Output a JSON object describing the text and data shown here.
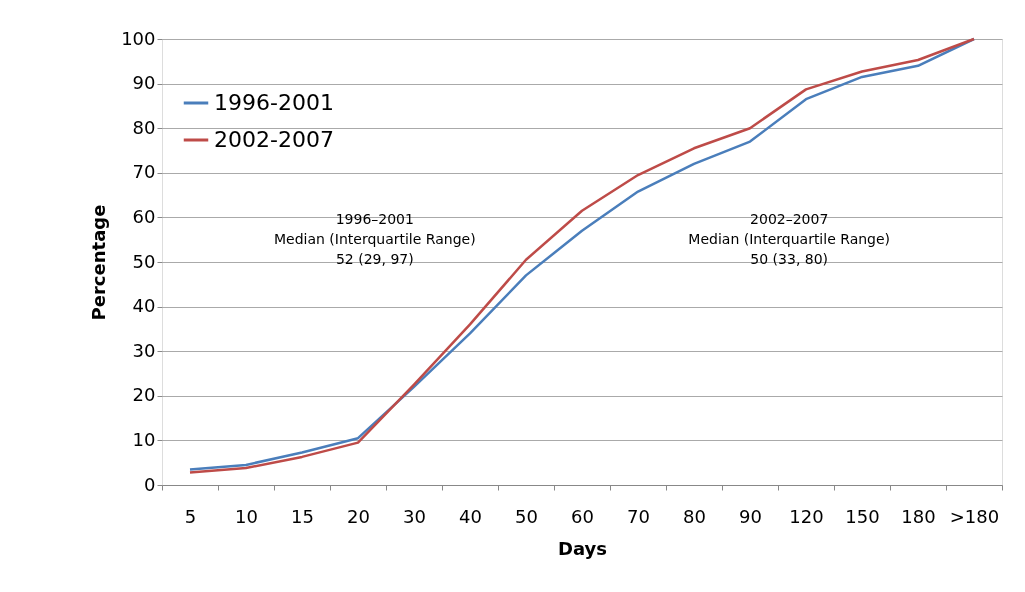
{
  "chart_data": {
    "type": "line",
    "xlabel": "Days",
    "ylabel": "Percentage",
    "categories": [
      "5",
      "10",
      "15",
      "20",
      "30",
      "40",
      "50",
      "60",
      "70",
      "80",
      "90",
      "120",
      "150",
      "180",
      ">180"
    ],
    "series": [
      {
        "name": "1996-2001",
        "color": "#4a7ebb",
        "values": [
          3.5,
          4.5,
          7.3,
          10.5,
          22,
          34,
          47,
          57,
          65.8,
          72,
          77,
          86.5,
          91.5,
          94,
          100
        ]
      },
      {
        "name": "2002-2007",
        "color": "#be4b48",
        "values": [
          2.8,
          3.8,
          6.3,
          9.5,
          22.5,
          36,
          50.5,
          61.5,
          69.5,
          75.5,
          80,
          88.7,
          92.7,
          95.3,
          100
        ]
      }
    ],
    "ylim": [
      0,
      100
    ],
    "yticks": [
      0,
      10,
      20,
      30,
      40,
      50,
      60,
      70,
      80,
      90,
      100
    ],
    "grid": "y",
    "legend": "top left",
    "marker": "none",
    "line_style": "solid",
    "annotations": [
      "1996–2001\nMedian (Interquartile Range)\n52 (29, 97)",
      "2002–2007\nMedian (Interquartile Range)\n50 (33, 80)"
    ]
  }
}
